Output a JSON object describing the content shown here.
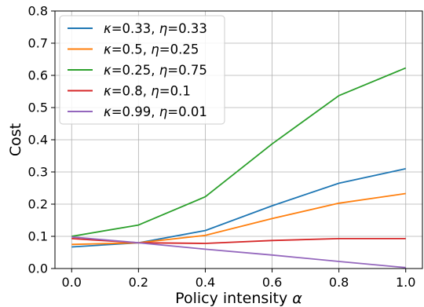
{
  "chart_data": {
    "type": "line",
    "xlabel": "Policy intensity",
    "xlabel_symbol": "α",
    "ylabel": "Cost",
    "xlim": [
      -0.05,
      1.05
    ],
    "ylim": [
      0.0,
      0.8
    ],
    "xticks": [
      0.0,
      0.2,
      0.4,
      0.6,
      0.8,
      1.0
    ],
    "xtick_labels": [
      "0.0",
      "0.2",
      "0.4",
      "0.6",
      "0.8",
      "1.0"
    ],
    "yticks": [
      0.0,
      0.1,
      0.2,
      0.3,
      0.4,
      0.5,
      0.6,
      0.7,
      0.8
    ],
    "ytick_labels": [
      "0.0",
      "0.1",
      "0.2",
      "0.3",
      "0.4",
      "0.5",
      "0.6",
      "0.7",
      "0.8"
    ],
    "grid": true,
    "legend_position": "upper-left",
    "x": [
      0.0,
      0.2,
      0.4,
      0.6,
      0.8,
      1.0
    ],
    "series": [
      {
        "kappa": "0.33",
        "eta": "0.33",
        "color": "#1f77b4",
        "values": [
          0.067,
          0.08,
          0.118,
          0.195,
          0.265,
          0.31
        ]
      },
      {
        "kappa": "0.5",
        "eta": "0.25",
        "color": "#ff7f0e",
        "values": [
          0.075,
          0.08,
          0.103,
          0.155,
          0.203,
          0.233
        ]
      },
      {
        "kappa": "0.25",
        "eta": "0.75",
        "color": "#2ca02c",
        "values": [
          0.1,
          0.135,
          0.223,
          0.387,
          0.537,
          0.623
        ]
      },
      {
        "kappa": "0.8",
        "eta": "0.1",
        "color": "#d62728",
        "values": [
          0.093,
          0.08,
          0.078,
          0.087,
          0.093,
          0.093
        ]
      },
      {
        "kappa": "0.99",
        "eta": "0.01",
        "color": "#9467bd",
        "values": [
          0.098,
          0.08,
          0.06,
          0.042,
          0.022,
          0.003
        ]
      }
    ]
  }
}
